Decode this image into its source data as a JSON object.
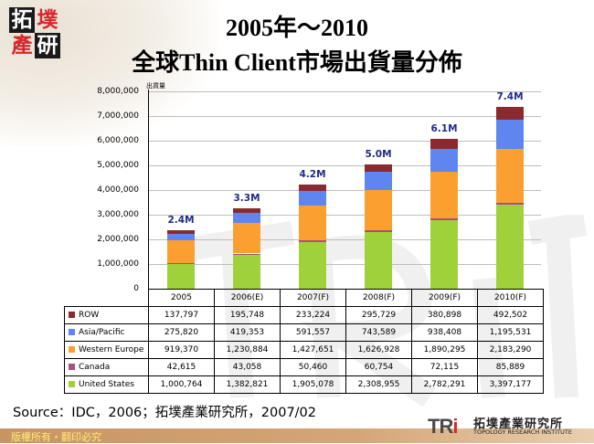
{
  "header": {
    "logo_chars": [
      "拓",
      "墣",
      "產",
      "研"
    ],
    "title_line1": "2005年～2010",
    "title_line2": "全球Thin Client市場出貨量分佈"
  },
  "chart_data": {
    "type": "bar",
    "stacked": true,
    "title": "2005年～2010 全球Thin Client市場出貨量分佈",
    "ylabel": "出貨量",
    "xlabel": "",
    "ylim": [
      0,
      8000000
    ],
    "yticks": [
      "8,000,000",
      "7,000,000",
      "6,000,000",
      "5,000,000",
      "4,000,000",
      "3,000,000",
      "2,000,000",
      "1,000,000",
      "0"
    ],
    "grid": true,
    "legend_position": "table-left",
    "categories": [
      "2005",
      "2006(E)",
      "2007(F)",
      "2008(F)",
      "2009(F)",
      "2010(F)"
    ],
    "totals_labels": [
      "2.4M",
      "3.3M",
      "4.2M",
      "5.0M",
      "6.1M",
      "7.4M"
    ],
    "series": [
      {
        "name": "ROW",
        "color": "#8b2a2e",
        "values": [
          137797,
          195748,
          233224,
          295729,
          380898,
          492502
        ]
      },
      {
        "name": "Asia/Pacific",
        "color": "#5f86f0",
        "values": [
          275820,
          419353,
          591557,
          743589,
          938408,
          1195531
        ]
      },
      {
        "name": "Western Europe",
        "color": "#fba030",
        "values": [
          919370,
          1230884,
          1427651,
          1626928,
          1890295,
          2183290
        ]
      },
      {
        "name": "Canada",
        "color": "#a8517a",
        "values": [
          42615,
          43058,
          50460,
          60754,
          72115,
          85889
        ]
      },
      {
        "name": "United States",
        "color": "#9fd23a",
        "values": [
          1000764,
          1382821,
          1905078,
          2308955,
          2782291,
          3397177
        ]
      }
    ]
  },
  "table": {
    "headers": [
      "2005",
      "2006(E)",
      "2007(F)",
      "2008(F)",
      "2009(F)",
      "2010(F)"
    ],
    "rows": [
      {
        "label": "ROW",
        "color": "#8b2a2e",
        "cells": [
          "137,797",
          "195,748",
          "233,224",
          "295,729",
          "380,898",
          "492,502"
        ]
      },
      {
        "label": "Asia/Pacific",
        "color": "#5f86f0",
        "cells": [
          "275,820",
          "419,353",
          "591,557",
          "743,589",
          "938,408",
          "1,195,531"
        ]
      },
      {
        "label": "Western Europe",
        "color": "#fba030",
        "cells": [
          "919,370",
          "1,230,884",
          "1,427,651",
          "1,626,928",
          "1,890,295",
          "2,183,290"
        ]
      },
      {
        "label": "Canada",
        "color": "#a8517a",
        "cells": [
          "42,615",
          "43,058",
          "50,460",
          "60,754",
          "72,115",
          "85,889"
        ]
      },
      {
        "label": "United States",
        "color": "#9fd23a",
        "cells": [
          "1,000,764",
          "1,382,821",
          "1,905,078",
          "2,308,955",
          "2,782,291",
          "3,397,177"
        ]
      }
    ]
  },
  "source": "Source：IDC，2006；拓墣產業研究所，2007/02",
  "footer": {
    "copyright": "版權所有・翻印必究",
    "brand_mark": "TRi",
    "brand_cn": "拓墣產業研究所",
    "brand_en": "TOPOLOGY RESEARCH INSTITUTE"
  }
}
